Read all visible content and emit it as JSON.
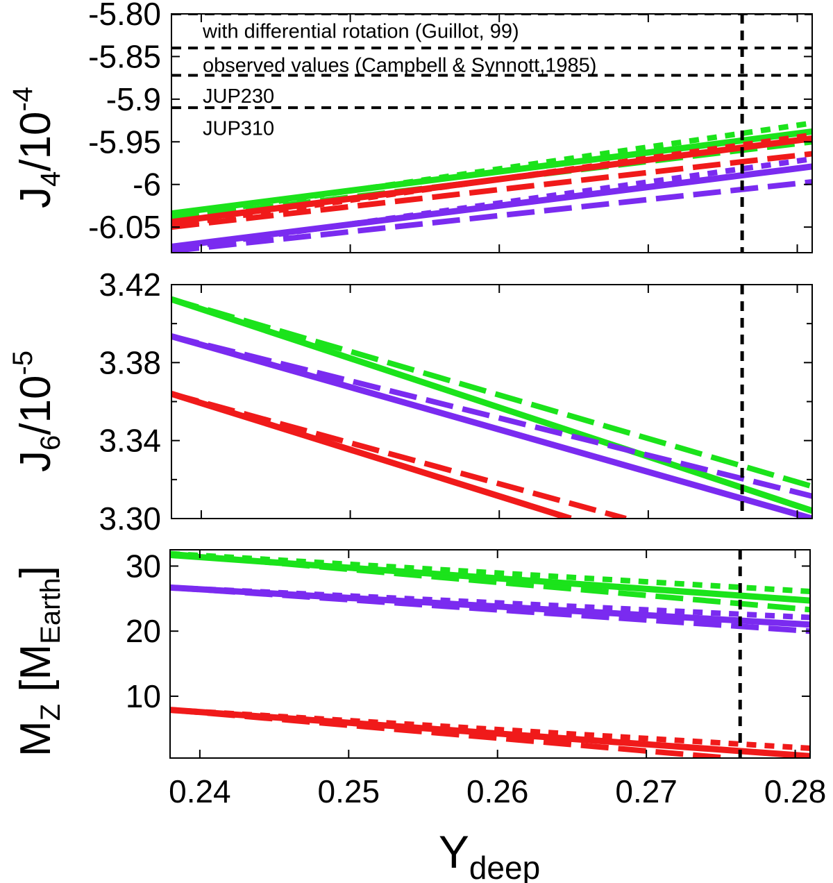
{
  "chart_data": [
    {
      "id": "j4",
      "type": "line",
      "ylabel_main": "J",
      "ylabel_sub": "4",
      "ylabel_tail": "/10",
      "ylabel_sup": "-4",
      "xlim": [
        0.238,
        0.281
      ],
      "ylim": [
        -6.08,
        -5.8
      ],
      "xticks": [
        0.24,
        0.25,
        0.26,
        0.27,
        0.28
      ],
      "yticks": [
        -6.05,
        -6.0,
        -5.95,
        -5.9,
        -5.85,
        -5.8
      ],
      "ytick_labels": [
        "-6.05",
        "-6",
        "-5.95",
        "-5.9",
        "-5.85",
        "-5.80"
      ],
      "vline_x": 0.2763,
      "hlines": [
        -5.8,
        -5.84,
        -5.872,
        -5.91
      ],
      "legend": [
        {
          "label": "with differential rotation (Guillot, 99)",
          "y": -5.82
        },
        {
          "label": "observed values (Campbell & Synnott,1985)",
          "y": -5.86
        },
        {
          "label": "JUP230",
          "y": -5.896
        },
        {
          "label": "JUP310",
          "y": -5.934
        }
      ],
      "series": [
        {
          "name": "green",
          "style": "solid",
          "x": [
            0.238,
            0.281
          ],
          "y": [
            -6.034,
            -5.938
          ]
        },
        {
          "name": "green",
          "style": "dotted",
          "x": [
            0.238,
            0.281
          ],
          "y": [
            -6.038,
            -5.928
          ]
        },
        {
          "name": "green",
          "style": "dashed",
          "x": [
            0.238,
            0.281
          ],
          "y": [
            -6.04,
            -5.95
          ]
        },
        {
          "name": "red",
          "style": "solid",
          "x": [
            0.238,
            0.281
          ],
          "y": [
            -6.044,
            -5.946
          ]
        },
        {
          "name": "red",
          "style": "dotted",
          "x": [
            0.238,
            0.281
          ],
          "y": [
            -6.048,
            -5.942
          ]
        },
        {
          "name": "red",
          "style": "dashed",
          "x": [
            0.238,
            0.281
          ],
          "y": [
            -6.05,
            -5.964
          ]
        },
        {
          "name": "purple",
          "style": "solid",
          "x": [
            0.238,
            0.281
          ],
          "y": [
            -6.073,
            -5.979
          ]
        },
        {
          "name": "purple",
          "style": "dotted",
          "x": [
            0.238,
            0.281
          ],
          "y": [
            -6.076,
            -5.97
          ]
        },
        {
          "name": "purple",
          "style": "dashed",
          "x": [
            0.238,
            0.281
          ],
          "y": [
            -6.078,
            -5.997
          ]
        }
      ]
    },
    {
      "id": "j6",
      "type": "line",
      "ylabel_main": "J",
      "ylabel_sub": "6",
      "ylabel_tail": "/10",
      "ylabel_sup": "-5",
      "xlim": [
        0.238,
        0.281
      ],
      "ylim": [
        3.3,
        3.42
      ],
      "xticks": [
        0.24,
        0.25,
        0.26,
        0.27,
        0.28
      ],
      "yticks": [
        3.3,
        3.34,
        3.38,
        3.42
      ],
      "ytick_labels": [
        "3.30",
        "3.34",
        "3.38",
        "3.42"
      ],
      "minor_yticks": [
        3.32,
        3.36,
        3.4
      ],
      "vline_x": 0.2763,
      "series": [
        {
          "name": "green",
          "style": "solid",
          "x": [
            0.238,
            0.281
          ],
          "y": [
            3.4125,
            3.304
          ]
        },
        {
          "name": "green",
          "style": "dashed",
          "x": [
            0.238,
            0.281
          ],
          "y": [
            3.4125,
            3.3165
          ]
        },
        {
          "name": "purple",
          "style": "solid",
          "x": [
            0.238,
            0.281
          ],
          "y": [
            3.3935,
            3.3
          ]
        },
        {
          "name": "purple",
          "style": "dashed",
          "x": [
            0.238,
            0.281
          ],
          "y": [
            3.3935,
            3.3115
          ]
        },
        {
          "name": "red",
          "style": "solid",
          "x": [
            0.238,
            0.2648
          ],
          "y": [
            3.364,
            3.3
          ]
        },
        {
          "name": "red",
          "style": "dashed",
          "x": [
            0.238,
            0.2685
          ],
          "y": [
            3.364,
            3.3
          ]
        }
      ]
    },
    {
      "id": "mz",
      "type": "line",
      "ylabel_main": "M",
      "ylabel_sub": "Z",
      "ylabel_tail": " [M",
      "ylabel_sub2": "Earth",
      "ylabel_end": "]",
      "xlim": [
        0.238,
        0.281
      ],
      "ylim": [
        0.5,
        32.5
      ],
      "xticks": [
        0.24,
        0.25,
        0.26,
        0.27,
        0.28
      ],
      "yticks": [
        10,
        20,
        30
      ],
      "ytick_labels": [
        "10",
        "20",
        "30"
      ],
      "xtick_labels": [
        "0.24",
        "0.25",
        "0.26",
        "0.27",
        "0.28"
      ],
      "xlabel_main": "Y",
      "xlabel_sub": "deep",
      "vline_x": 0.2763,
      "series": [
        {
          "name": "green",
          "style": "solid",
          "x": [
            0.238,
            0.281
          ],
          "y": [
            31.7,
            24.7
          ]
        },
        {
          "name": "green",
          "style": "dotted",
          "x": [
            0.238,
            0.281
          ],
          "y": [
            31.9,
            26.1
          ]
        },
        {
          "name": "green",
          "style": "dashed",
          "x": [
            0.238,
            0.281
          ],
          "y": [
            31.9,
            23.3
          ]
        },
        {
          "name": "purple",
          "style": "solid",
          "x": [
            0.238,
            0.281
          ],
          "y": [
            26.7,
            21.0
          ]
        },
        {
          "name": "purple",
          "style": "dotted",
          "x": [
            0.238,
            0.281
          ],
          "y": [
            26.7,
            22.1
          ]
        },
        {
          "name": "purple",
          "style": "dashed",
          "x": [
            0.238,
            0.281
          ],
          "y": [
            26.7,
            20.0
          ]
        },
        {
          "name": "red",
          "style": "solid",
          "x": [
            0.238,
            0.281
          ],
          "y": [
            7.9,
            0.8
          ]
        },
        {
          "name": "red",
          "style": "dotted",
          "x": [
            0.238,
            0.281
          ],
          "y": [
            7.9,
            2.0
          ]
        },
        {
          "name": "red",
          "style": "dashed",
          "x": [
            0.238,
            0.2755
          ],
          "y": [
            7.9,
            0.5
          ]
        }
      ]
    }
  ],
  "colors": {
    "green": "#1be31b",
    "red": "#f01a1a",
    "purple": "#7a2bf0",
    "axis": "#000000"
  }
}
